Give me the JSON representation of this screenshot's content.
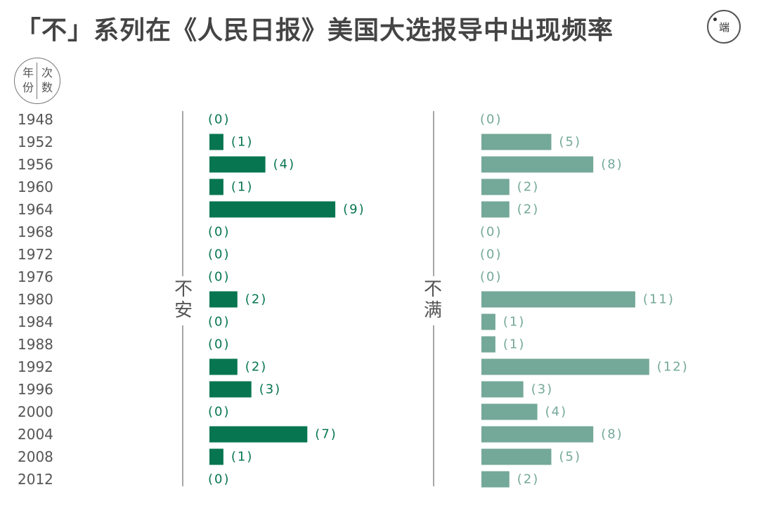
{
  "title": "「不」系列在《人民日报》美国大选报导中出现频率",
  "logo": {
    "text": "端"
  },
  "badge": {
    "left": "年份",
    "right": "次数"
  },
  "colors": {
    "panel1": "#077650",
    "panel2": "#74a899",
    "axis": "#8a8a8a",
    "text": "#555555"
  },
  "chart_data": [
    {
      "type": "bar",
      "orientation": "horizontal",
      "panel_label": "不安",
      "categories": [
        "1948",
        "1952",
        "1956",
        "1960",
        "1964",
        "1968",
        "1972",
        "1976",
        "1980",
        "1984",
        "1988",
        "1992",
        "1996",
        "2000",
        "2004",
        "2008",
        "2012"
      ],
      "values": [
        0,
        1,
        4,
        1,
        9,
        0,
        0,
        0,
        2,
        0,
        0,
        2,
        3,
        0,
        7,
        1,
        0
      ],
      "value_labels": [
        "(0)",
        "(1)",
        "(4)",
        "(1)",
        "(9)",
        "(0)",
        "(0)",
        "(0)",
        "(2)",
        "(0)",
        "(0)",
        "(2)",
        "(3)",
        "(0)",
        "(7)",
        "(1)",
        "(0)"
      ],
      "color": "#077650"
    },
    {
      "type": "bar",
      "orientation": "horizontal",
      "panel_label": "不满",
      "categories": [
        "1948",
        "1952",
        "1956",
        "1960",
        "1964",
        "1968",
        "1972",
        "1976",
        "1980",
        "1984",
        "1988",
        "1992",
        "1996",
        "2000",
        "2004",
        "2008",
        "2012"
      ],
      "values": [
        0,
        5,
        8,
        2,
        2,
        0,
        0,
        0,
        11,
        1,
        1,
        12,
        3,
        4,
        8,
        5,
        2
      ],
      "value_labels": [
        "(0)",
        "(5)",
        "(8)",
        "(2)",
        "(2)",
        "(0)",
        "(0)",
        "(0)",
        "(11)",
        "(1)",
        "(1)",
        "(12)",
        "(3)",
        "(4)",
        "(8)",
        "(5)",
        "(2)"
      ],
      "color": "#74a899"
    }
  ]
}
